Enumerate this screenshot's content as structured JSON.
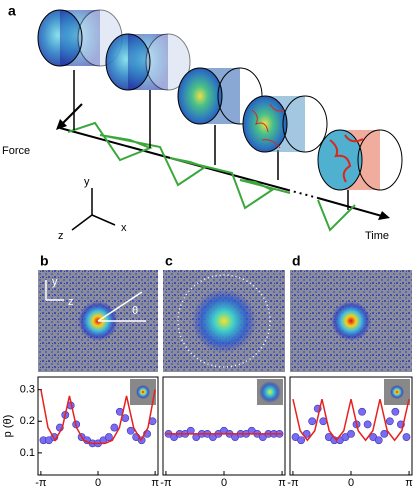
{
  "diagram": {
    "label": "a",
    "force": "Force",
    "time": "Time",
    "axes": [
      "y",
      "z",
      "x"
    ]
  },
  "chart_data": [
    {
      "type": "scatter",
      "panel": "b",
      "annotations": [
        "y",
        "z",
        "θ"
      ],
      "ylabel": "p (θ)",
      "xlim": [
        -3.3,
        3.3
      ],
      "ylim": [
        0.03,
        0.34
      ],
      "xticks": [
        {
          "value": -3.14159,
          "label": "-π"
        },
        0,
        {
          "value": 3.14159,
          "label": "π"
        }
      ],
      "yticks": [
        0.1,
        0.2,
        0.3
      ],
      "series": [
        {
          "type": "scatter",
          "color": "#7a6cf2",
          "x": [
            -3.0,
            -2.7,
            -2.4,
            -2.1,
            -1.8,
            -1.5,
            -1.2,
            -0.9,
            -0.6,
            -0.3,
            0,
            0.3,
            0.6,
            0.9,
            1.2,
            1.5,
            1.8,
            2.1,
            2.4,
            2.7,
            3.0
          ],
          "values": [
            0.14,
            0.14,
            0.15,
            0.18,
            0.22,
            0.25,
            0.19,
            0.15,
            0.14,
            0.13,
            0.13,
            0.14,
            0.15,
            0.18,
            0.23,
            0.21,
            0.17,
            0.15,
            0.14,
            0.16,
            0.2
          ]
        },
        {
          "type": "line",
          "color": "#e8211c",
          "x": [
            -3.14,
            -2.75,
            -2.36,
            -1.96,
            -1.57,
            -1.18,
            -0.79,
            -0.39,
            0,
            0.39,
            0.79,
            1.18,
            1.57,
            1.96,
            2.36,
            2.75,
            3.14
          ],
          "values": [
            0.3,
            0.18,
            0.14,
            0.18,
            0.28,
            0.18,
            0.14,
            0.13,
            0.13,
            0.13,
            0.14,
            0.18,
            0.28,
            0.18,
            0.14,
            0.18,
            0.3
          ]
        }
      ]
    },
    {
      "type": "scatter",
      "panel": "c",
      "xlim": [
        -3.3,
        3.3
      ],
      "ylim": [
        0.03,
        0.34
      ],
      "xticks": [
        {
          "value": -3.14159,
          "label": "-π"
        },
        0,
        {
          "value": 3.14159,
          "label": "π"
        }
      ],
      "series": [
        {
          "type": "scatter",
          "color": "#7a6cf2",
          "x": [
            -3.0,
            -2.7,
            -2.4,
            -2.1,
            -1.8,
            -1.5,
            -1.2,
            -0.9,
            -0.6,
            -0.3,
            0,
            0.3,
            0.6,
            0.9,
            1.2,
            1.5,
            1.8,
            2.1,
            2.4,
            2.7,
            3.0
          ],
          "values": [
            0.16,
            0.15,
            0.16,
            0.16,
            0.17,
            0.15,
            0.16,
            0.16,
            0.15,
            0.16,
            0.17,
            0.16,
            0.15,
            0.16,
            0.16,
            0.17,
            0.16,
            0.15,
            0.16,
            0.16,
            0.16
          ]
        },
        {
          "type": "line",
          "color": "#e8211c",
          "x": [
            -3.14,
            3.14
          ],
          "values": [
            0.16,
            0.16
          ]
        }
      ]
    },
    {
      "type": "scatter",
      "panel": "d",
      "xlim": [
        -3.3,
        3.3
      ],
      "ylim": [
        0.03,
        0.34
      ],
      "xticks": [
        {
          "value": -3.14159,
          "label": "-π"
        },
        0,
        {
          "value": 3.14159,
          "label": "π"
        }
      ],
      "series": [
        {
          "type": "scatter",
          "color": "#7a6cf2",
          "x": [
            -3.0,
            -2.7,
            -2.4,
            -2.1,
            -1.8,
            -1.5,
            -1.2,
            -0.9,
            -0.6,
            -0.3,
            0,
            0.3,
            0.6,
            0.9,
            1.2,
            1.5,
            1.8,
            2.1,
            2.4,
            2.7,
            3.0
          ],
          "values": [
            0.15,
            0.14,
            0.16,
            0.2,
            0.24,
            0.2,
            0.15,
            0.14,
            0.14,
            0.15,
            0.16,
            0.19,
            0.23,
            0.19,
            0.15,
            0.14,
            0.16,
            0.2,
            0.23,
            0.19,
            0.15
          ]
        },
        {
          "type": "line",
          "color": "#e8211c",
          "x": [
            -3.14,
            -2.75,
            -2.36,
            -1.96,
            -1.57,
            -1.18,
            -0.79,
            -0.39,
            0,
            0.39,
            0.79,
            1.18,
            1.57,
            1.96,
            2.36,
            2.75,
            3.14
          ],
          "values": [
            0.27,
            0.17,
            0.14,
            0.17,
            0.27,
            0.17,
            0.14,
            0.17,
            0.27,
            0.17,
            0.14,
            0.17,
            0.27,
            0.17,
            0.14,
            0.17,
            0.27
          ]
        }
      ]
    }
  ]
}
